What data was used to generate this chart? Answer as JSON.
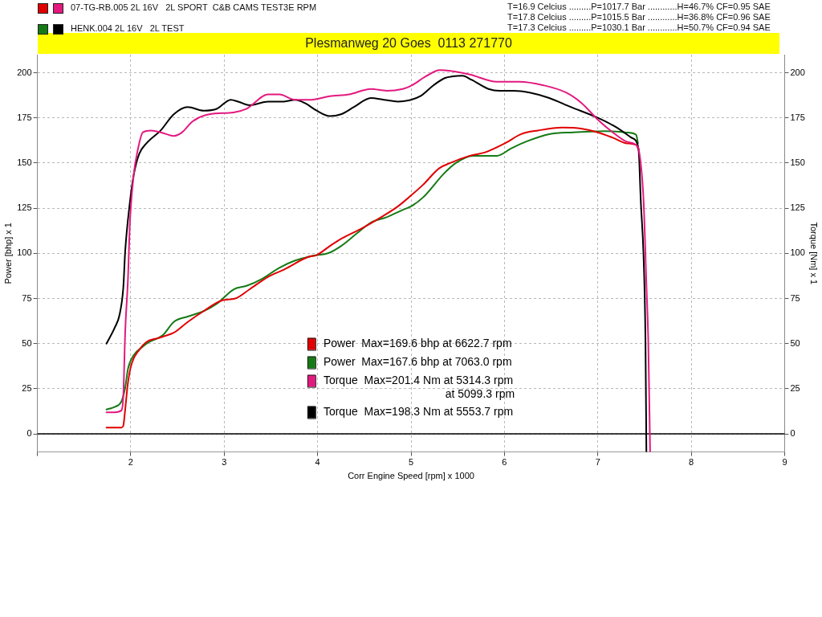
{
  "chart_data": {
    "type": "line",
    "title": "Plesmanweg 20 Goes  0113 271770",
    "xlabel": "Corr Engine Speed [rpm] x 1000",
    "ylabel": "Power [bhp] x 1",
    "y2label": "Torque [Nm] x 1",
    "xlim": [
      1,
      9
    ],
    "xticks": [
      {
        "value": 1,
        "label": null
      },
      2,
      3,
      4,
      5,
      6,
      7,
      8,
      9
    ],
    "ylim": [
      -10,
      210
    ],
    "yticks": [
      0,
      25,
      50,
      75,
      100,
      125,
      150,
      175,
      200
    ],
    "y2lim": [
      -10,
      210
    ],
    "y2ticks": [
      0,
      25,
      50,
      75,
      100,
      125,
      150,
      175,
      200
    ],
    "grid": true,
    "legend": "bottom",
    "marker": "none",
    "line_style": "solid",
    "ref_lines": [
      {
        "axis": "y",
        "value": 0,
        "color": "#000000"
      }
    ],
    "annotations": [
      "07-TG-RB.005 2L 16V   2L SPORT  C&B CAMS TEST3E RPM",
      "HENK.004 2L 16V   2L TEST",
      "T=16.9 Celcius .........P=1017.7 Bar ............H=46.7% CF=0.95 SAE",
      "T=17.8 Celcius .........P=1015.5 Bar ............H=36.8% CF=0.96 SAE",
      "T=17.3 Celcius .........P=1030.1 Bar ............H=50.7% CF=0.94 SAE",
      "at 5099.3 rpm"
    ],
    "series": [
      {
        "name": "Power  Max=169.6 bhp at 6622.7 rpm",
        "color": "#e00000",
        "x": [
          1.74,
          1.9,
          1.92,
          1.94,
          1.97,
          2.01,
          2.09,
          2.17,
          2.29,
          2.35,
          2.46,
          2.61,
          2.78,
          2.98,
          3.12,
          3.27,
          3.47,
          3.64,
          3.9,
          3.99,
          4.13,
          4.25,
          4.48,
          4.68,
          4.86,
          5.0,
          5.13,
          5.3,
          5.42,
          5.63,
          5.8,
          6.01,
          6.18,
          6.36,
          6.62,
          6.83,
          7.0,
          7.16,
          7.3,
          7.41,
          7.44
        ],
        "values": [
          3.5,
          3.5,
          4.5,
          13.5,
          28.5,
          39,
          46.5,
          51,
          53,
          54,
          56,
          62,
          68,
          74,
          75,
          80,
          87,
          91,
          98,
          99,
          104,
          108,
          114,
          120,
          126,
          132,
          138,
          147,
          150,
          154,
          156,
          161,
          166,
          168,
          169.6,
          169,
          167,
          164,
          161,
          160,
          157
        ]
      },
      {
        "name": "Power  Max=167.6 bhp at 7063.0 rpm",
        "color": "#157a15",
        "x": [
          1.74,
          1.83,
          1.9,
          1.94,
          1.97,
          2.03,
          2.12,
          2.2,
          2.29,
          2.35,
          2.46,
          2.61,
          2.78,
          2.92,
          3.1,
          3.24,
          3.41,
          3.59,
          3.76,
          3.9,
          3.99,
          4.11,
          4.25,
          4.42,
          4.57,
          4.74,
          4.91,
          5.0,
          5.13,
          5.35,
          5.48,
          5.66,
          5.92,
          6.07,
          6.24,
          6.48,
          6.74,
          7.0,
          7.06,
          7.2,
          7.33,
          7.41,
          7.43
        ],
        "values": [
          13.5,
          15,
          18,
          25.5,
          36,
          43.5,
          48,
          51,
          53,
          55,
          62,
          65,
          68,
          72,
          80,
          82,
          86,
          92,
          96,
          98,
          99,
          100,
          104,
          111,
          117,
          120,
          124,
          126,
          131,
          144,
          150,
          154,
          154,
          158,
          162,
          166,
          167,
          167.5,
          167.6,
          167.4,
          166.8,
          165.6,
          161
        ]
      },
      {
        "name": "Torque  Max=201.4 Nm at 5314.3 rpm",
        "color": "#e3197f",
        "axis": "y2",
        "x": [
          1.74,
          1.83,
          1.9,
          1.92,
          1.94,
          1.97,
          1.99,
          2.03,
          2.07,
          2.13,
          2.22,
          2.32,
          2.46,
          2.55,
          2.66,
          2.84,
          3.1,
          3.24,
          3.47,
          3.59,
          3.76,
          3.93,
          4.13,
          4.34,
          4.57,
          4.74,
          4.91,
          5.01,
          5.16,
          5.31,
          5.42,
          5.63,
          5.92,
          6.16,
          6.42,
          6.66,
          6.83,
          7.0,
          7.16,
          7.3,
          7.41,
          7.44,
          7.49,
          7.52,
          7.54,
          7.56
        ],
        "values": [
          12,
          12,
          13,
          21,
          56,
          86,
          116,
          143,
          156,
          167,
          168,
          167,
          165,
          167,
          173,
          177,
          178,
          180,
          188,
          188,
          185,
          185,
          187,
          188,
          191,
          190,
          191,
          193,
          198,
          201.4,
          201,
          199,
          195,
          195,
          193,
          189,
          183,
          174,
          167,
          162,
          160,
          157,
          129,
          83,
          52,
          -10
        ]
      },
      {
        "name": "Torque  Max=198.3 Nm at 5553.7 rpm",
        "color": "#000000",
        "axis": "y2",
        "x": [
          1.74,
          1.83,
          1.88,
          1.92,
          1.94,
          1.99,
          2.03,
          2.09,
          2.17,
          2.32,
          2.46,
          2.61,
          2.78,
          2.92,
          3.07,
          3.15,
          3.27,
          3.47,
          3.64,
          3.76,
          3.87,
          3.99,
          4.13,
          4.25,
          4.39,
          4.57,
          4.71,
          4.86,
          5.0,
          5.1,
          5.24,
          5.36,
          5.45,
          5.55,
          5.65,
          5.83,
          5.95,
          6.1,
          6.27,
          6.48,
          6.71,
          7.0,
          7.19,
          7.36,
          7.42,
          7.44,
          7.46,
          7.49,
          7.51,
          7.52
        ],
        "values": [
          50,
          59,
          66,
          81,
          101,
          128,
          143,
          155,
          161,
          168,
          177,
          181,
          179,
          180,
          185,
          184,
          182,
          184,
          184,
          185,
          183,
          179,
          176,
          177,
          181,
          186,
          185,
          184,
          185,
          187,
          193,
          197,
          198,
          198.3,
          196,
          191,
          190,
          190,
          189,
          186,
          181,
          175,
          170,
          164,
          161,
          155,
          129,
          98,
          52,
          -10
        ]
      }
    ]
  }
}
